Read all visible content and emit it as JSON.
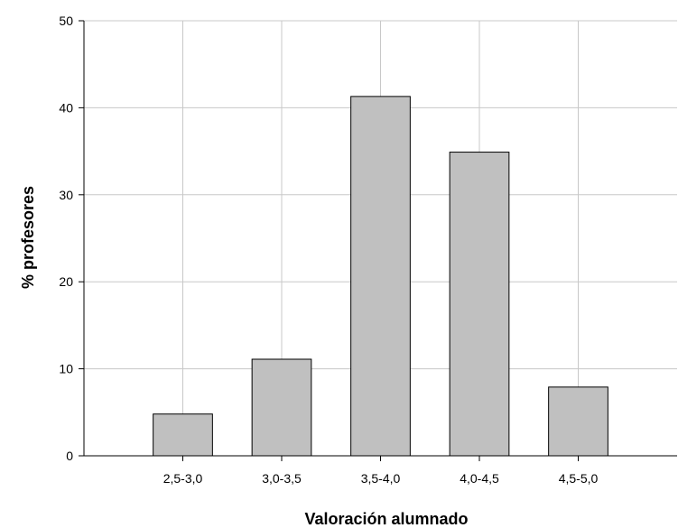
{
  "chart_data": {
    "type": "bar",
    "title": "",
    "xlabel": "Valoración alumnado",
    "ylabel": "% profesores",
    "categories": [
      "2,5-3,0",
      "3,0-3,5",
      "3,5-4,0",
      "4,0-4,5",
      "4,5-5,0"
    ],
    "values": [
      4.8,
      11.1,
      41.3,
      34.9,
      7.9
    ],
    "ylim": [
      0,
      50
    ],
    "yticks": [
      0,
      10,
      20,
      30,
      40,
      50
    ],
    "grid": true,
    "legend": "none",
    "colors": {
      "bar_fill": "#c0c0c0",
      "bar_stroke": "#000000",
      "grid": "#c8c8c8",
      "axis": "#000000"
    }
  }
}
